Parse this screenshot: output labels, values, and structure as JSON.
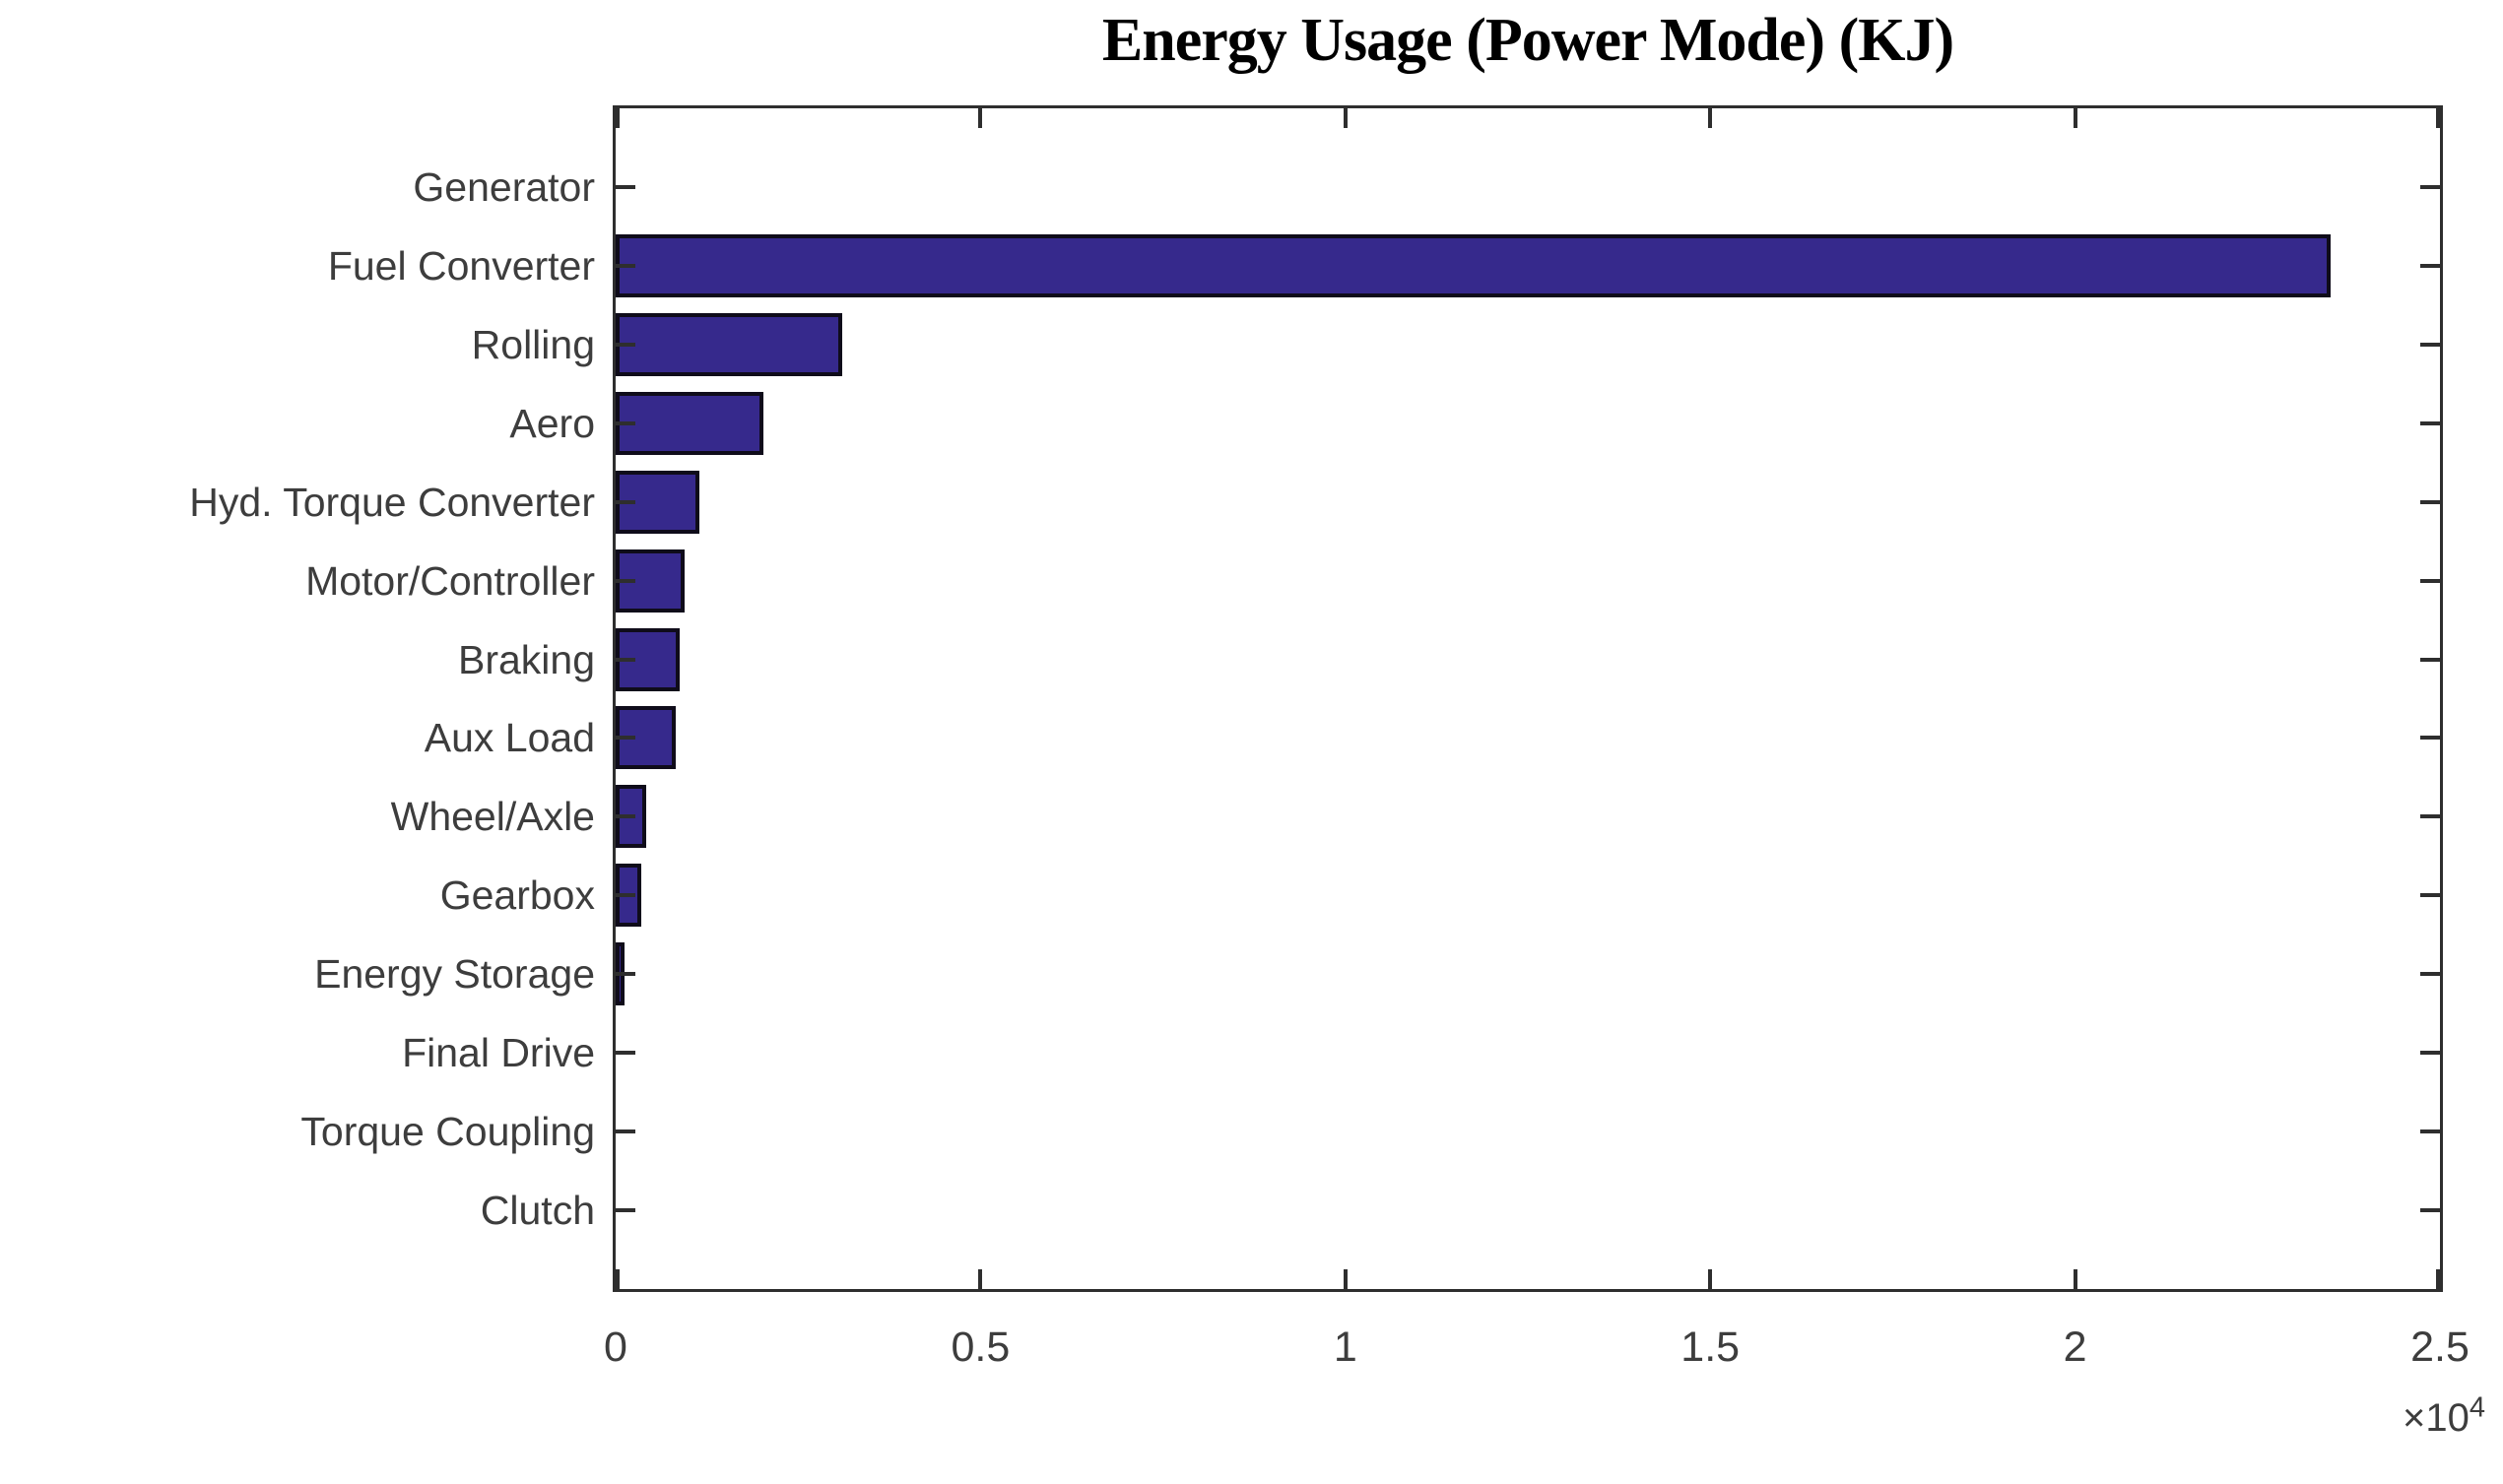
{
  "figure": {
    "title": "Energy Usage (Power Mode) (KJ)",
    "axis_exponent_prefix": "×10",
    "axis_exponent_power": "4"
  },
  "chart_data": {
    "type": "bar",
    "orientation": "horizontal",
    "title": "Energy Usage (Power Mode) (KJ)",
    "unit": "KJ",
    "categories": [
      "Generator",
      "Fuel Converter",
      "Rolling",
      "Aero",
      "Hyd. Torque Converter",
      "Motor/Controller",
      "Braking",
      "Aux Load",
      "Wheel/Axle",
      "Gearbox",
      "Energy Storage",
      "Final Drive",
      "Torque Coupling",
      "Clutch"
    ],
    "values": [
      0,
      23500,
      3100,
      2020,
      1150,
      940,
      880,
      820,
      420,
      350,
      70,
      0,
      0,
      0
    ],
    "xlim": [
      0,
      25000
    ],
    "x_ticks": [
      0,
      5000,
      10000,
      15000,
      20000,
      25000
    ],
    "x_tick_labels": [
      "0",
      "0.5",
      "1",
      "1.5",
      "2",
      "2.5"
    ],
    "x_scale_label": "×10⁴",
    "bar_color": "#36298c",
    "bar_edge_color": "#0f0c1a",
    "axis_color": "#2e2e2e",
    "legend": null,
    "grid": false
  }
}
